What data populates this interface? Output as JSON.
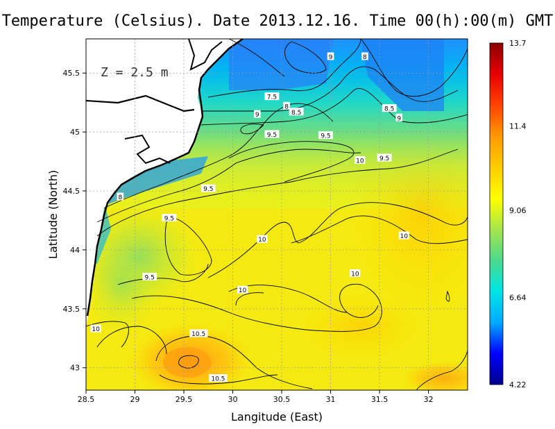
{
  "title": "Temperature (Celsius). Date 2013.12.16. Time 00(h):00(m) GMT",
  "depth_label": "Z = 2.5 m",
  "chart_data": {
    "type": "heatmap",
    "title": "Temperature (Celsius). Date 2013.12.16. Time 00(h):00(m) GMT",
    "xlabel": "Langitude (East)",
    "ylabel": "Latitude (North)",
    "xlim": [
      28.5,
      32.4
    ],
    "ylim": [
      42.81,
      45.79
    ],
    "x_ticks": [
      "28.5",
      "29",
      "29.5",
      "30",
      "30.5",
      "31",
      "31.5",
      "32"
    ],
    "y_ticks": [
      "43",
      "43.5",
      "44",
      "44.5",
      "45",
      "45.5"
    ],
    "grid": true,
    "colorbar": {
      "min": 4.22,
      "max": 13.7,
      "tick_labels": [
        "13.7",
        "11.4",
        "9.06",
        "6.64",
        "4.22"
      ],
      "colors": [
        "#00008b",
        "#0000ff",
        "#00aaff",
        "#00e5e5",
        "#4cd98c",
        "#a6e64c",
        "#ffff00",
        "#ffcc00",
        "#ff9900",
        "#ff4400",
        "#e60000",
        "#8b0000"
      ]
    },
    "contour_labels": [
      {
        "text": "7.5",
        "lon": 30.4,
        "lat": 45.3
      },
      {
        "text": "8",
        "lon": 30.55,
        "lat": 45.22
      },
      {
        "text": "8.5",
        "lon": 30.65,
        "lat": 45.17
      },
      {
        "text": "9",
        "lon": 30.25,
        "lat": 45.15
      },
      {
        "text": "9",
        "lon": 31.0,
        "lat": 45.64
      },
      {
        "text": "8",
        "lon": 31.35,
        "lat": 45.64
      },
      {
        "text": "8.5",
        "lon": 31.6,
        "lat": 45.2
      },
      {
        "text": "9",
        "lon": 31.7,
        "lat": 45.12
      },
      {
        "text": "9.5",
        "lon": 30.4,
        "lat": 44.98
      },
      {
        "text": "9.5",
        "lon": 30.95,
        "lat": 44.97
      },
      {
        "text": "10",
        "lon": 31.3,
        "lat": 44.76
      },
      {
        "text": "9.5",
        "lon": 31.55,
        "lat": 44.78
      },
      {
        "text": "9.5",
        "lon": 29.75,
        "lat": 44.52
      },
      {
        "text": "8",
        "lon": 28.85,
        "lat": 44.45
      },
      {
        "text": "9.5",
        "lon": 29.35,
        "lat": 44.27
      },
      {
        "text": "10",
        "lon": 30.3,
        "lat": 44.09
      },
      {
        "text": "10",
        "lon": 31.75,
        "lat": 44.12
      },
      {
        "text": "9.5",
        "lon": 29.15,
        "lat": 43.77
      },
      {
        "text": "10",
        "lon": 31.25,
        "lat": 43.8
      },
      {
        "text": "10",
        "lon": 30.1,
        "lat": 43.66
      },
      {
        "text": "10",
        "lon": 28.6,
        "lat": 43.33
      },
      {
        "text": "10.5",
        "lon": 29.65,
        "lat": 43.29
      },
      {
        "text": "10.5",
        "lon": 29.85,
        "lat": 42.91
      }
    ]
  }
}
